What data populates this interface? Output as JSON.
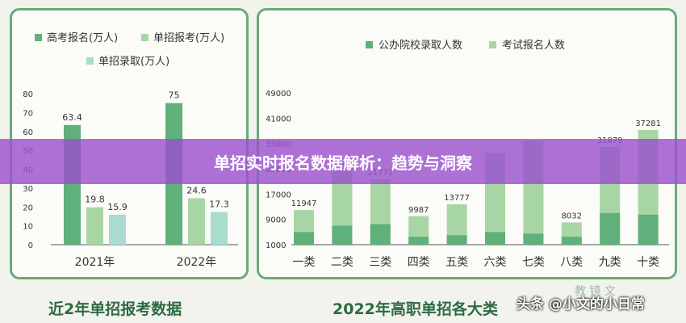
{
  "banner": {
    "title": "单招实时报名数据解析：趋势与洞察"
  },
  "captions": {
    "left": "近2年单招报考数据",
    "right": "2022年高职单招各大类"
  },
  "watermark": {
    "text": "头条 @小文的小日常",
    "logo": "教 镜 文"
  },
  "colors": {
    "dark_green": "#5fb07a",
    "light_green": "#a8d5a4",
    "teal": "#a9dccf",
    "banner": "#9b50cd",
    "border": "#6aaa7a"
  },
  "chart_data": [
    {
      "type": "bar",
      "legend": [
        "高考报名(万人)",
        "单招报考(万人)",
        "单招录取(万人)"
      ],
      "categories": [
        "2021年",
        "2022年"
      ],
      "series": [
        {
          "name": "高考报名(万人)",
          "values": [
            63.4,
            75
          ]
        },
        {
          "name": "单招报考(万人)",
          "values": [
            19.8,
            24.6
          ]
        },
        {
          "name": "单招录取(万人)",
          "values": [
            15.9,
            17.3
          ]
        }
      ],
      "ylim": [
        0,
        80
      ],
      "yticks": [
        0,
        10,
        20,
        30,
        40,
        50,
        60,
        70,
        80
      ]
    },
    {
      "type": "bar",
      "stacked": true,
      "legend": [
        "公办院校录取人数",
        "考试报名人数"
      ],
      "categories": [
        "一类",
        "二类",
        "三类",
        "四类",
        "五类",
        "六类",
        "七类",
        "八类",
        "九类",
        "十类"
      ],
      "series": [
        {
          "name": "公办院校录取人数",
          "values": [
            5000,
            7000,
            7500,
            3500,
            4000,
            5000,
            4500,
            3500,
            11000,
            10500
          ]
        },
        {
          "name": "考试报名人数",
          "values": [
            11947,
            24586,
            21771,
            9987,
            13777,
            30000,
            34000,
            8032,
            31879,
            37281
          ]
        }
      ],
      "top_labels": [
        "11947",
        "24586",
        "21771",
        "9987",
        "13777",
        "",
        "",
        "8032",
        "31879",
        "37281"
      ],
      "ylim": [
        1000,
        49000
      ],
      "yticks": [
        1000,
        9000,
        17000,
        25000,
        33000,
        41000,
        49000
      ]
    }
  ]
}
